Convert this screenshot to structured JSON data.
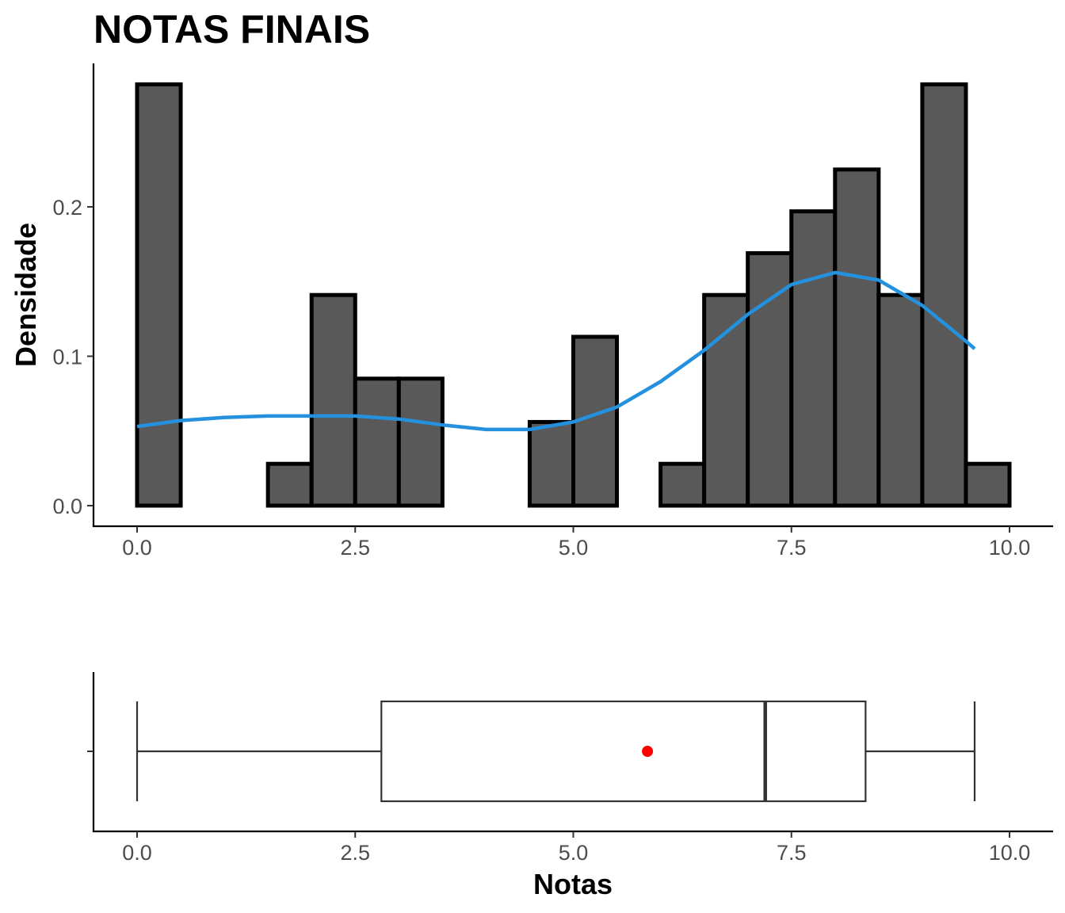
{
  "chart_data": [
    {
      "type": "bar",
      "title": "NOTAS FINAIS",
      "ylabel": "Densidade",
      "xlim": [
        -0.5,
        10.5
      ],
      "ylim": [
        0,
        0.29
      ],
      "x_ticks": [
        "0.0",
        "2.5",
        "5.0",
        "7.5",
        "10.0"
      ],
      "y_ticks": [
        "0.0",
        "0.1",
        "0.2"
      ],
      "grid": false,
      "bin_width": 0.5,
      "bins": [
        {
          "start": 0.0,
          "end": 0.5,
          "density": 0.282
        },
        {
          "start": 0.5,
          "end": 1.0,
          "density": 0.0
        },
        {
          "start": 1.0,
          "end": 1.5,
          "density": 0.0
        },
        {
          "start": 1.5,
          "end": 2.0,
          "density": 0.028
        },
        {
          "start": 2.0,
          "end": 2.5,
          "density": 0.141
        },
        {
          "start": 2.5,
          "end": 3.0,
          "density": 0.085
        },
        {
          "start": 3.0,
          "end": 3.5,
          "density": 0.085
        },
        {
          "start": 3.5,
          "end": 4.0,
          "density": 0.0
        },
        {
          "start": 4.0,
          "end": 4.5,
          "density": 0.0
        },
        {
          "start": 4.5,
          "end": 5.0,
          "density": 0.056
        },
        {
          "start": 5.0,
          "end": 5.5,
          "density": 0.113
        },
        {
          "start": 5.5,
          "end": 6.0,
          "density": 0.0
        },
        {
          "start": 6.0,
          "end": 6.5,
          "density": 0.028
        },
        {
          "start": 6.5,
          "end": 7.0,
          "density": 0.141
        },
        {
          "start": 7.0,
          "end": 7.5,
          "density": 0.169
        },
        {
          "start": 7.5,
          "end": 8.0,
          "density": 0.197
        },
        {
          "start": 8.0,
          "end": 8.5,
          "density": 0.225
        },
        {
          "start": 8.5,
          "end": 9.0,
          "density": 0.141
        },
        {
          "start": 9.0,
          "end": 9.5,
          "density": 0.282
        },
        {
          "start": 9.5,
          "end": 10.0,
          "density": 0.028
        }
      ],
      "density_curve": {
        "color": "#2391dd",
        "x": [
          0.0,
          0.5,
          1.0,
          1.5,
          2.0,
          2.5,
          3.0,
          3.5,
          4.0,
          4.5,
          5.0,
          5.5,
          6.0,
          6.5,
          7.0,
          7.5,
          8.0,
          8.5,
          9.0,
          9.5,
          9.6
        ],
        "y": [
          0.053,
          0.057,
          0.059,
          0.06,
          0.06,
          0.06,
          0.058,
          0.054,
          0.051,
          0.051,
          0.056,
          0.066,
          0.083,
          0.104,
          0.128,
          0.148,
          0.156,
          0.151,
          0.134,
          0.11,
          0.105
        ]
      },
      "bar_fill": "#595959",
      "bar_stroke": "#000000"
    },
    {
      "type": "boxplot",
      "xlabel": "Notas",
      "xlim": [
        -0.5,
        10.5
      ],
      "x_ticks": [
        "0.0",
        "2.5",
        "5.0",
        "7.5",
        "10.0"
      ],
      "min": 0.0,
      "q1": 2.8,
      "median": 7.2,
      "q3": 8.35,
      "max": 9.6,
      "mean": 5.85,
      "mean_color": "#ff0000"
    }
  ]
}
